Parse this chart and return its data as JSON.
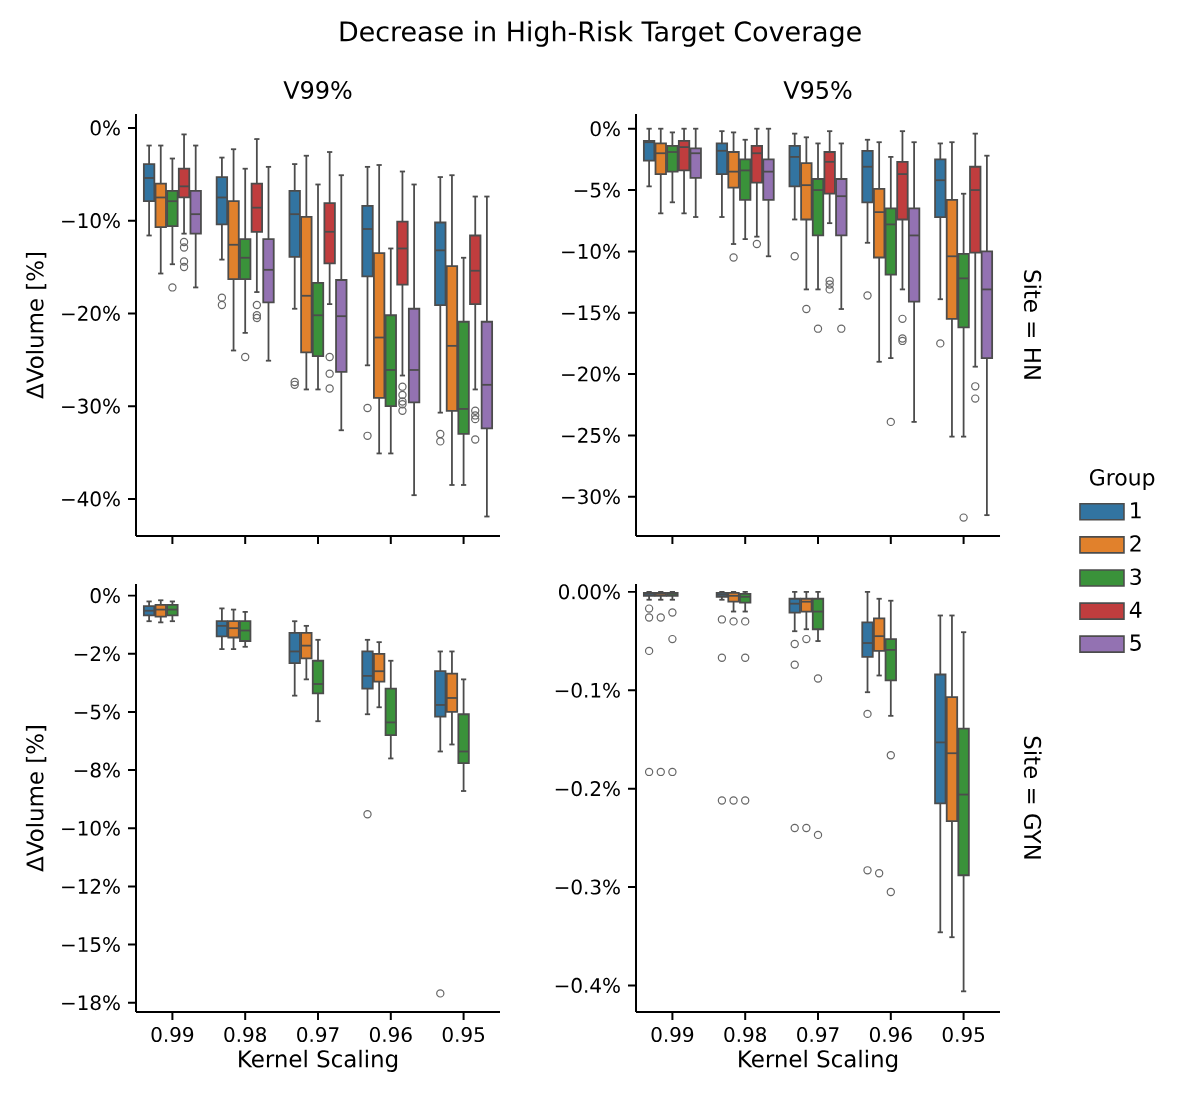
{
  "chart_data": [
    {
      "type": "box",
      "title": "Decrease in High-Risk Target Coverage",
      "subtitle": "V99%",
      "ylabel": "ΔVolume [%]",
      "categories": [
        "0.99",
        "0.98",
        "0.97",
        "0.96",
        "0.95"
      ],
      "tick_labels": "y",
      "ylim": [
        -44,
        1.5
      ],
      "yticks": [
        {
          "value": 0,
          "label": "0%"
        },
        {
          "value": -10,
          "label": "−10%"
        },
        {
          "value": -20,
          "label": "−20%"
        },
        {
          "value": -30,
          "label": "−30%"
        },
        {
          "value": -40,
          "label": "−40%"
        }
      ],
      "series": [
        {
          "color": "#3274a1",
          "boxes": [
            {
              "low": -11.6,
              "q1": -7.9,
              "median": -5.4,
              "q3": -3.9,
              "high": -1.9
            },
            {
              "low": -14.2,
              "q1": -10.4,
              "median": -7.5,
              "q3": -5.3,
              "high": -3.2,
              "outliers": [
                -18.3,
                -19.1
              ]
            },
            {
              "low": -19.5,
              "q1": -13.9,
              "median": -9.3,
              "q3": -6.8,
              "high": -3.9,
              "outliers": [
                -27.4,
                -27.7
              ]
            },
            {
              "low": -25.6,
              "q1": -16.0,
              "median": -10.9,
              "q3": -8.4,
              "high": -4.2,
              "outliers": [
                -30.2,
                -33.2
              ]
            },
            {
              "low": -30.7,
              "q1": -19.1,
              "median": -13.2,
              "q3": -10.2,
              "high": -5.3,
              "outliers": [
                -33.0,
                -33.8
              ]
            }
          ]
        },
        {
          "color": "#e1812c",
          "boxes": [
            {
              "low": -15.7,
              "q1": -10.7,
              "median": -7.5,
              "q3": -6.0,
              "high": -1.9
            },
            {
              "low": -24.0,
              "q1": -16.3,
              "median": -12.6,
              "q3": -7.9,
              "high": -2.3
            },
            {
              "low": -28.2,
              "q1": -24.2,
              "median": -18.1,
              "q3": -9.6,
              "high": -3.0
            },
            {
              "low": -35.1,
              "q1": -29.1,
              "median": -22.6,
              "q3": -13.5,
              "high": -4.0
            },
            {
              "low": -38.5,
              "q1": -30.5,
              "median": -23.5,
              "q3": -14.9,
              "high": -5.1
            }
          ]
        },
        {
          "color": "#3a923a",
          "boxes": [
            {
              "low": -14.7,
              "q1": -10.6,
              "median": -7.9,
              "q3": -6.8,
              "high": -3.3,
              "outliers": [
                -17.2
              ]
            },
            {
              "low": -22.1,
              "q1": -16.3,
              "median": -14.0,
              "q3": -12.0,
              "high": -4.4,
              "outliers": [
                -24.7
              ]
            },
            {
              "low": -28.2,
              "q1": -24.6,
              "median": -20.2,
              "q3": -16.7,
              "high": -6.1
            },
            {
              "low": -35.1,
              "q1": -30.0,
              "median": -26.1,
              "q3": -20.2,
              "high": -13.0
            },
            {
              "low": -38.5,
              "q1": -33.0,
              "median": -30.3,
              "q3": -20.9,
              "high": -14.0
            }
          ]
        },
        {
          "color": "#c03d3e",
          "boxes": [
            {
              "low": -11.4,
              "q1": -7.5,
              "median": -6.3,
              "q3": -4.4,
              "high": -0.7,
              "outliers": [
                -12.3,
                -12.9,
                -14.4,
                -15.0
              ]
            },
            {
              "low": -17.7,
              "q1": -11.2,
              "median": -8.6,
              "q3": -6.0,
              "high": -1.2,
              "outliers": [
                -19.1,
                -20.2,
                -20.5
              ]
            },
            {
              "low": -19.0,
              "q1": -14.6,
              "median": -11.2,
              "q3": -8.1,
              "high": -2.6,
              "outliers": [
                -24.7,
                -26.5,
                -28.1
              ]
            },
            {
              "low": -26.7,
              "q1": -16.9,
              "median": -13.0,
              "q3": -10.1,
              "high": -4.7,
              "outliers": [
                -27.9,
                -28.8,
                -29.5,
                -29.8,
                -30.5
              ]
            },
            {
              "low": -28.2,
              "q1": -19.0,
              "median": -15.4,
              "q3": -11.6,
              "high": -7.4,
              "outliers": [
                -30.5,
                -31.0,
                -31.4,
                -33.6
              ]
            }
          ]
        },
        {
          "color": "#9372b2",
          "boxes": [
            {
              "low": -17.2,
              "q1": -11.4,
              "median": -9.3,
              "q3": -6.8,
              "high": -1.9
            },
            {
              "low": -25.1,
              "q1": -18.8,
              "median": -15.3,
              "q3": -12.0,
              "high": -4.2
            },
            {
              "low": -32.6,
              "q1": -26.3,
              "median": -20.3,
              "q3": -16.4,
              "high": -5.1
            },
            {
              "low": -39.6,
              "q1": -29.6,
              "median": -26.1,
              "q3": -19.5,
              "high": -6.1
            },
            {
              "low": -41.9,
              "q1": -32.4,
              "median": -27.7,
              "q3": -20.9,
              "high": -7.4
            }
          ]
        }
      ]
    },
    {
      "type": "box",
      "subtitle": "V95%",
      "annotations": [
        "Site = HN"
      ],
      "legend": "right",
      "legend_title": "Group",
      "categories": [
        "0.99",
        "0.98",
        "0.97",
        "0.96",
        "0.95"
      ],
      "tick_labels": "y",
      "ylim": [
        -33.2,
        1.2
      ],
      "yticks": [
        {
          "value": 0,
          "label": "0%"
        },
        {
          "value": -5,
          "label": "−5%"
        },
        {
          "value": -10,
          "label": "−10%"
        },
        {
          "value": -15,
          "label": "−15%"
        },
        {
          "value": -20,
          "label": "−20%"
        },
        {
          "value": -25,
          "label": "−25%"
        },
        {
          "value": -30,
          "label": "−30%"
        }
      ],
      "series": [
        {
          "name": "1",
          "color": "#3274a1",
          "boxes": [
            {
              "low": -4.7,
              "q1": -2.6,
              "median": -1.1,
              "q3": -1.0,
              "high": 0
            },
            {
              "low": -7.2,
              "q1": -3.7,
              "median": -1.8,
              "q3": -1.2,
              "high": -0.2
            },
            {
              "low": -7.4,
              "q1": -4.7,
              "median": -2.3,
              "q3": -1.4,
              "high": -0.4,
              "outliers": [
                -10.4
              ]
            },
            {
              "low": -9.3,
              "q1": -6.0,
              "median": -3.1,
              "q3": -1.8,
              "high": -0.9,
              "outliers": [
                -13.6
              ]
            },
            {
              "low": -13.9,
              "q1": -7.2,
              "median": -4.2,
              "q3": -2.5,
              "high": -1.2,
              "outliers": [
                -17.5
              ]
            }
          ]
        },
        {
          "name": "2",
          "color": "#e1812c",
          "boxes": [
            {
              "low": -6.9,
              "q1": -3.7,
              "median": -2.0,
              "q3": -1.2,
              "high": 0
            },
            {
              "low": -9.4,
              "q1": -4.8,
              "median": -3.5,
              "q3": -1.9,
              "high": -0.3,
              "outliers": [
                -10.5
              ]
            },
            {
              "low": -13.1,
              "q1": -7.4,
              "median": -4.6,
              "q3": -2.8,
              "high": -0.7,
              "outliers": [
                -14.7
              ]
            },
            {
              "low": -19.0,
              "q1": -10.5,
              "median": -6.8,
              "q3": -4.9,
              "high": -1.1
            },
            {
              "low": -25.1,
              "q1": -15.5,
              "median": -10.4,
              "q3": -5.8,
              "high": -1.1
            }
          ]
        },
        {
          "name": "3",
          "color": "#3a923a",
          "boxes": [
            {
              "low": -6.0,
              "q1": -3.5,
              "median": -1.9,
              "q3": -1.4,
              "high": -0.3
            },
            {
              "low": -9.0,
              "q1": -5.8,
              "median": -3.4,
              "q3": -2.5,
              "high": -0.9
            },
            {
              "low": -13.1,
              "q1": -8.7,
              "median": -5.0,
              "q3": -4.1,
              "high": -1.2,
              "outliers": [
                -16.3
              ]
            },
            {
              "low": -18.7,
              "q1": -11.9,
              "median": -7.8,
              "q3": -6.5,
              "high": -2.3,
              "outliers": [
                -23.9
              ]
            },
            {
              "low": -25.1,
              "q1": -16.2,
              "median": -12.2,
              "q3": -10.2,
              "high": -5.3,
              "outliers": [
                -31.7
              ]
            }
          ]
        },
        {
          "name": "4",
          "color": "#c03d3e",
          "boxes": [
            {
              "low": -6.9,
              "q1": -3.4,
              "median": -1.5,
              "q3": -1.0,
              "high": 0
            },
            {
              "low": -8.8,
              "q1": -4.4,
              "median": -2.0,
              "q3": -1.4,
              "high": 0,
              "outliers": [
                -9.4
              ]
            },
            {
              "low": -7.7,
              "q1": -5.3,
              "median": -2.7,
              "q3": -1.9,
              "high": -0.2,
              "outliers": [
                -12.4,
                -12.7,
                -13.1
              ]
            },
            {
              "low": -13.1,
              "q1": -7.4,
              "median": -3.7,
              "q3": -2.7,
              "high": -0.2,
              "outliers": [
                -15.5,
                -17.1,
                -17.3
              ]
            },
            {
              "low": -19.4,
              "q1": -10.1,
              "median": -5.0,
              "q3": -3.1,
              "high": -0.4,
              "outliers": [
                -21.0,
                -22.0
              ]
            }
          ]
        },
        {
          "name": "5",
          "color": "#9372b2",
          "boxes": [
            {
              "low": -7.2,
              "q1": -4.0,
              "median": -2.0,
              "q3": -1.6,
              "high": 0
            },
            {
              "low": -10.4,
              "q1": -5.8,
              "median": -3.5,
              "q3": -2.5,
              "high": 0
            },
            {
              "low": -14.7,
              "q1": -8.7,
              "median": -5.5,
              "q3": -4.1,
              "high": -1.2,
              "outliers": [
                -16.3
              ]
            },
            {
              "low": -23.9,
              "q1": -14.1,
              "median": -8.7,
              "q3": -6.5,
              "high": -1.1
            },
            {
              "low": -31.5,
              "q1": -18.7,
              "median": -13.1,
              "q3": -10.0,
              "high": -2.2
            }
          ]
        }
      ]
    },
    {
      "type": "box",
      "ylabel": "ΔVolume [%]",
      "xlabel": "Kernel Scaling",
      "categories": [
        "0.99",
        "0.98",
        "0.97",
        "0.96",
        "0.95"
      ],
      "ylim": [
        -17.9,
        0.5
      ],
      "yticks": [
        {
          "value": 0,
          "label": "0%"
        },
        {
          "value": -2.5,
          "label": "−2%"
        },
        {
          "value": -5,
          "label": "−5%"
        },
        {
          "value": -7.5,
          "label": "−8%"
        },
        {
          "value": -10,
          "label": "−10%"
        },
        {
          "value": -12.5,
          "label": "−12%"
        },
        {
          "value": -15,
          "label": "−15%"
        },
        {
          "value": -17.5,
          "label": "−18%"
        }
      ],
      "series": [
        {
          "color": "#3274a1",
          "boxes": [
            {
              "low": -1.1,
              "q1": -0.85,
              "median": -0.65,
              "q3": -0.45,
              "high": -0.25
            },
            {
              "low": -2.3,
              "q1": -1.75,
              "median": -1.3,
              "q3": -1.1,
              "high": -0.55
            },
            {
              "low": -4.3,
              "q1": -2.9,
              "median": -2.4,
              "q3": -1.6,
              "high": -1.1
            },
            {
              "low": -5.1,
              "q1": -4.0,
              "median": -3.45,
              "q3": -2.4,
              "high": -1.9,
              "outliers": [
                -9.4
              ]
            },
            {
              "low": -6.7,
              "q1": -5.2,
              "median": -4.7,
              "q3": -3.25,
              "high": -2.4,
              "outliers": [
                -17.1
              ]
            }
          ]
        },
        {
          "color": "#e1812c",
          "boxes": [
            {
              "low": -1.15,
              "q1": -0.9,
              "median": -0.6,
              "q3": -0.4,
              "high": -0.2
            },
            {
              "low": -2.3,
              "q1": -1.8,
              "median": -1.4,
              "q3": -1.1,
              "high": -0.6
            },
            {
              "low": -3.6,
              "q1": -2.7,
              "median": -2.15,
              "q3": -1.6,
              "high": -1.3
            },
            {
              "low": -4.8,
              "q1": -3.7,
              "median": -3.25,
              "q3": -2.5,
              "high": -2.0
            },
            {
              "low": -6.4,
              "q1": -5.0,
              "median": -4.4,
              "q3": -3.35,
              "high": -2.4
            }
          ]
        },
        {
          "color": "#3a923a",
          "boxes": [
            {
              "low": -1.1,
              "q1": -0.85,
              "median": -0.6,
              "q3": -0.4,
              "high": -0.25
            },
            {
              "low": -2.2,
              "q1": -1.95,
              "median": -1.5,
              "q3": -1.1,
              "high": -0.7
            },
            {
              "low": -5.4,
              "q1": -4.2,
              "median": -3.8,
              "q3": -2.8,
              "high": -1.9
            },
            {
              "low": -7.0,
              "q1": -6.0,
              "median": -5.45,
              "q3": -4.0,
              "high": -2.8
            },
            {
              "low": -8.4,
              "q1": -7.2,
              "median": -6.7,
              "q3": -5.1,
              "high": -3.6
            }
          ]
        }
      ]
    },
    {
      "type": "box",
      "annotations": [
        "Site = GYN"
      ],
      "xlabel": "Kernel Scaling",
      "categories": [
        "0.99",
        "0.98",
        "0.97",
        "0.96",
        "0.95"
      ],
      "ylim": [
        -0.427,
        0.008
      ],
      "yticks": [
        {
          "value": 0,
          "label": "0.00%"
        },
        {
          "value": -0.1,
          "label": "−0.1%"
        },
        {
          "value": -0.2,
          "label": "−0.2%"
        },
        {
          "value": -0.3,
          "label": "−0.3%"
        },
        {
          "value": -0.4,
          "label": "−0.4%"
        }
      ],
      "series": [
        {
          "color": "#3274a1",
          "boxes": [
            {
              "low": -0.008,
              "q1": -0.004,
              "median": -0.002,
              "q3": -0.001,
              "high": 0,
              "outliers": [
                -0.017,
                -0.026,
                -0.06,
                -0.183
              ]
            },
            {
              "low": -0.008,
              "q1": -0.005,
              "median": -0.003,
              "q3": -0.001,
              "high": 0,
              "outliers": [
                -0.028,
                -0.067,
                -0.212
              ]
            },
            {
              "low": -0.04,
              "q1": -0.021,
              "median": -0.012,
              "q3": -0.007,
              "high": 0,
              "outliers": [
                -0.053,
                -0.074,
                -0.24
              ]
            },
            {
              "low": -0.102,
              "q1": -0.066,
              "median": -0.052,
              "q3": -0.031,
              "high": 0,
              "outliers": [
                -0.124,
                -0.283
              ]
            },
            {
              "low": -0.346,
              "q1": -0.215,
              "median": -0.153,
              "q3": -0.084,
              "high": -0.024
            }
          ]
        },
        {
          "color": "#e1812c",
          "boxes": [
            {
              "low": -0.008,
              "q1": -0.004,
              "median": -0.002,
              "q3": -0.001,
              "high": 0,
              "outliers": [
                -0.026,
                -0.183
              ]
            },
            {
              "low": -0.02,
              "q1": -0.01,
              "median": -0.004,
              "q3": -0.001,
              "high": 0,
              "outliers": [
                -0.03,
                -0.212
              ]
            },
            {
              "low": -0.038,
              "q1": -0.02,
              "median": -0.01,
              "q3": -0.007,
              "high": 0,
              "outliers": [
                -0.048,
                -0.24
              ]
            },
            {
              "low": -0.085,
              "q1": -0.06,
              "median": -0.045,
              "q3": -0.027,
              "high": -0.007,
              "outliers": [
                -0.286
              ]
            },
            {
              "low": -0.351,
              "q1": -0.233,
              "median": -0.164,
              "q3": -0.107,
              "high": -0.024
            }
          ]
        },
        {
          "color": "#3a923a",
          "boxes": [
            {
              "low": -0.008,
              "q1": -0.004,
              "median": -0.002,
              "q3": -0.001,
              "high": 0,
              "outliers": [
                -0.021,
                -0.048,
                -0.183
              ]
            },
            {
              "low": -0.02,
              "q1": -0.011,
              "median": -0.005,
              "q3": -0.002,
              "high": 0,
              "outliers": [
                -0.03,
                -0.067,
                -0.212
              ]
            },
            {
              "low": -0.05,
              "q1": -0.038,
              "median": -0.02,
              "q3": -0.007,
              "high": 0,
              "outliers": [
                -0.088,
                -0.247
              ]
            },
            {
              "low": -0.126,
              "q1": -0.09,
              "median": -0.059,
              "q3": -0.048,
              "high": -0.009,
              "outliers": [
                -0.166,
                -0.305
              ]
            },
            {
              "low": -0.406,
              "q1": -0.288,
              "median": -0.206,
              "q3": -0.139,
              "high": -0.041
            }
          ]
        }
      ]
    }
  ]
}
